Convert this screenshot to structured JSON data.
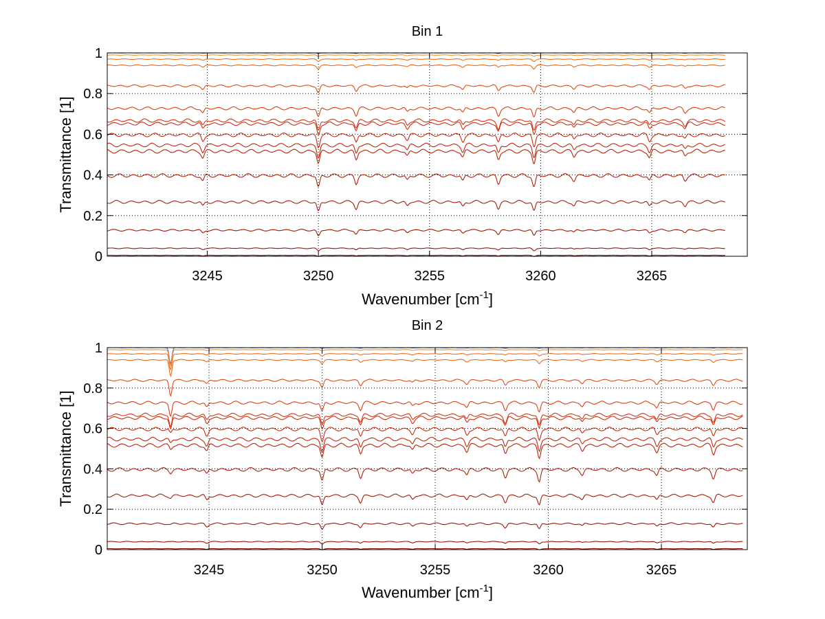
{
  "chart_data": [
    {
      "type": "line",
      "title": "Bin 1",
      "xlabel": "Wavenumber [cm",
      "xlabel_sup": "-1",
      "xlabel_tail": "]",
      "ylabel": "Transmittance [1]",
      "xlim": [
        3240.5,
        3269.3
      ],
      "ylim": [
        0,
        1
      ],
      "xticks": [
        3245,
        3250,
        3255,
        3260,
        3265
      ],
      "yticks": [
        0,
        0.2,
        0.4,
        0.6,
        0.8,
        1
      ],
      "grid": true,
      "x_range": [
        3240.5,
        3268.3
      ],
      "levels": [
        1.0,
        0.99,
        0.97,
        0.94,
        0.84,
        0.73,
        0.67,
        0.655,
        0.6,
        0.55,
        0.52,
        0.4,
        0.27,
        0.13,
        0.04,
        0.005
      ],
      "absorption_lines": [
        {
          "x": 3244.8,
          "depth": 0.5
        },
        {
          "x": 3250.0,
          "depth": 1.0
        },
        {
          "x": 3251.7,
          "depth": 0.7
        },
        {
          "x": 3254.0,
          "depth": 0.4
        },
        {
          "x": 3256.5,
          "depth": 0.5
        },
        {
          "x": 3258.1,
          "depth": 0.7
        },
        {
          "x": 3259.7,
          "depth": 1.0
        },
        {
          "x": 3261.5,
          "depth": 0.4
        },
        {
          "x": 3264.9,
          "depth": 0.5
        },
        {
          "x": 3266.5,
          "depth": 0.4
        }
      ],
      "peaks": [],
      "colors": [
        "#4f6fc9",
        "#e89030",
        "#f07020",
        "#e86a1a",
        "#e04a15",
        "#dc3d12",
        "#d43310",
        "#cf2e0e",
        "#c82a0c",
        "#c0260b",
        "#b8220a",
        "#b01f09",
        "#a81b08",
        "#9e1707",
        "#951306",
        "#8a0f05"
      ]
    },
    {
      "type": "line",
      "title": "Bin 2",
      "xlabel": "Wavenumber [cm",
      "xlabel_sup": "-1",
      "xlabel_tail": "]",
      "ylabel": "Transmittance [1]",
      "xlim": [
        3240.5,
        3268.8
      ],
      "ylim": [
        0,
        1
      ],
      "xticks": [
        3245,
        3250,
        3255,
        3260,
        3265
      ],
      "yticks": [
        0,
        0.2,
        0.4,
        0.6,
        0.8,
        1
      ],
      "grid": true,
      "x_range": [
        3240.5,
        3268.6
      ],
      "levels": [
        1.0,
        0.99,
        0.97,
        0.94,
        0.84,
        0.73,
        0.67,
        0.655,
        0.6,
        0.55,
        0.52,
        0.4,
        0.27,
        0.13,
        0.04,
        0.005
      ],
      "absorption_lines": [
        {
          "x": 3244.9,
          "depth": 0.5
        },
        {
          "x": 3250.0,
          "depth": 1.0
        },
        {
          "x": 3251.7,
          "depth": 0.7
        },
        {
          "x": 3254.0,
          "depth": 0.4
        },
        {
          "x": 3256.4,
          "depth": 0.5
        },
        {
          "x": 3258.1,
          "depth": 0.7
        },
        {
          "x": 3259.6,
          "depth": 1.0
        },
        {
          "x": 3261.5,
          "depth": 0.4
        },
        {
          "x": 3264.8,
          "depth": 0.5
        },
        {
          "x": 3267.3,
          "depth": 0.7
        }
      ],
      "peaks": [
        {
          "x": 3243.3,
          "depth": 0.08
        }
      ],
      "colors": [
        "#4f6fc9",
        "#e89030",
        "#f07020",
        "#e86a1a",
        "#e04a15",
        "#dc3d12",
        "#d43310",
        "#cf2e0e",
        "#c82a0c",
        "#c0260b",
        "#b8220a",
        "#b01f09",
        "#a81b08",
        "#9e1707",
        "#951306",
        "#8a0f05"
      ]
    }
  ]
}
